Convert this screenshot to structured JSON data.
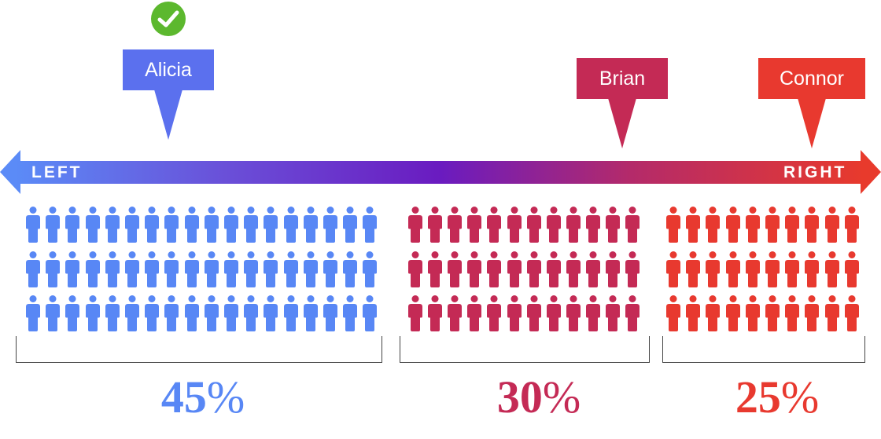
{
  "spectrum": {
    "left_label": "LEFT",
    "right_label": "RIGHT"
  },
  "candidates": [
    {
      "name": "Alicia",
      "color": "#5b70ee",
      "selected": true
    },
    {
      "name": "Brian",
      "color": "#c42a55",
      "selected": false
    },
    {
      "name": "Connor",
      "color": "#e8392f",
      "selected": false
    }
  ],
  "groups": [
    {
      "percent": "45",
      "percent_sign": "%",
      "color": "#5887f5",
      "rows": 3,
      "cols": 18
    },
    {
      "percent": "30",
      "percent_sign": "%",
      "color": "#c42a55",
      "rows": 3,
      "cols": 12
    },
    {
      "percent": "25",
      "percent_sign": "%",
      "color": "#e8392f",
      "rows": 3,
      "cols": 10
    }
  ],
  "icons": {
    "selected_marker": "check-circle-icon",
    "voter": "person-icon"
  },
  "check_color": "#5cb82e"
}
